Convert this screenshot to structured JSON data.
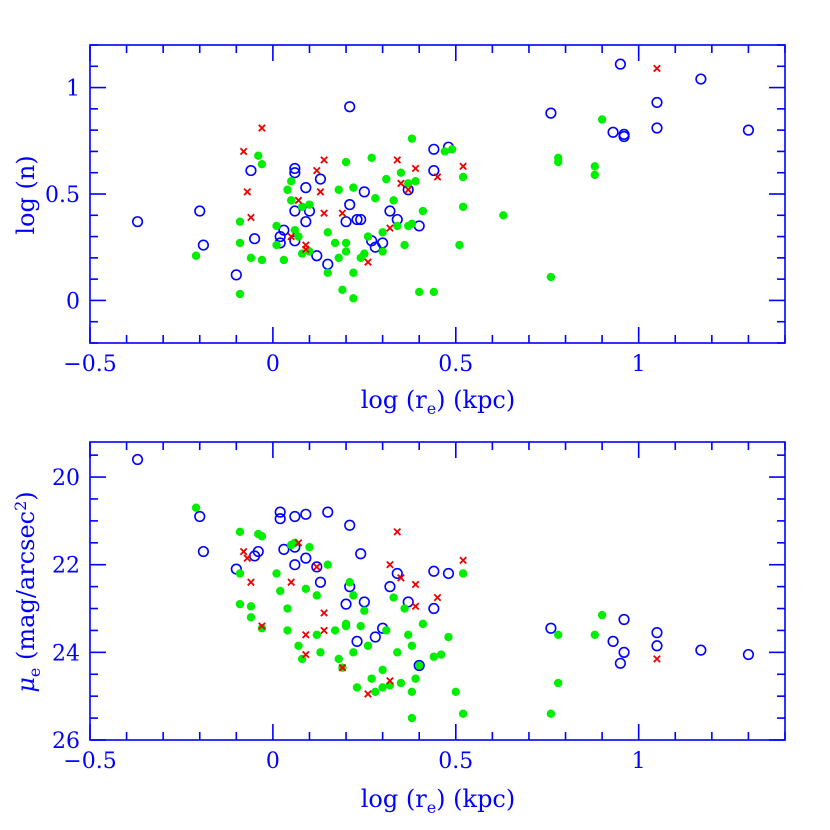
{
  "chart_data": [
    {
      "type": "scatter",
      "xlabel": "log (r_e) (kpc)",
      "ylabel": "log (n)",
      "xlim": [
        -0.5,
        1.4
      ],
      "ylim": [
        -0.2,
        1.2
      ],
      "xticks": [
        -0.5,
        0,
        0.5,
        1
      ],
      "xtick_labels": [
        "−0.5",
        "0",
        "0.5",
        "1"
      ],
      "yticks": [
        0,
        0.5,
        1
      ],
      "ytick_labels": [
        "0",
        "0.5",
        "1"
      ],
      "yinvert": false,
      "series": [
        {
          "marker": "open-circle",
          "color": "#0000ff",
          "points": [
            [
              -0.37,
              0.37
            ],
            [
              -0.2,
              0.42
            ],
            [
              -0.19,
              0.26
            ],
            [
              -0.1,
              0.12
            ],
            [
              -0.06,
              0.61
            ],
            [
              -0.05,
              0.29
            ],
            [
              0.02,
              0.3
            ],
            [
              0.02,
              0.27
            ],
            [
              0.03,
              0.33
            ],
            [
              0.06,
              0.6
            ],
            [
              0.06,
              0.62
            ],
            [
              0.06,
              0.42
            ],
            [
              0.06,
              0.28
            ],
            [
              0.09,
              0.53
            ],
            [
              0.09,
              0.37
            ],
            [
              0.1,
              0.42
            ],
            [
              0.12,
              0.21
            ],
            [
              0.13,
              0.57
            ],
            [
              0.15,
              0.17
            ],
            [
              0.2,
              0.37
            ],
            [
              0.21,
              0.91
            ],
            [
              0.21,
              0.45
            ],
            [
              0.23,
              0.38
            ],
            [
              0.24,
              0.38
            ],
            [
              0.25,
              0.51
            ],
            [
              0.27,
              0.28
            ],
            [
              0.28,
              0.25
            ],
            [
              0.3,
              0.27
            ],
            [
              0.32,
              0.42
            ],
            [
              0.34,
              0.38
            ],
            [
              0.37,
              0.52
            ],
            [
              0.4,
              0.35
            ],
            [
              0.44,
              0.71
            ],
            [
              0.44,
              0.61
            ],
            [
              0.48,
              0.72
            ],
            [
              0.76,
              0.88
            ],
            [
              0.93,
              0.79
            ],
            [
              0.95,
              1.11
            ],
            [
              0.96,
              0.78
            ],
            [
              0.96,
              0.77
            ],
            [
              1.05,
              0.93
            ],
            [
              1.05,
              0.81
            ],
            [
              1.17,
              1.04
            ],
            [
              1.3,
              0.8
            ]
          ]
        },
        {
          "marker": "filled-circle",
          "color": "#00ee00",
          "points": [
            [
              -0.21,
              0.21
            ],
            [
              -0.09,
              0.37
            ],
            [
              -0.09,
              0.27
            ],
            [
              -0.09,
              0.03
            ],
            [
              -0.06,
              0.2
            ],
            [
              -0.04,
              0.68
            ],
            [
              -0.03,
              0.64
            ],
            [
              -0.03,
              0.19
            ],
            [
              0.01,
              0.35
            ],
            [
              0.01,
              0.26
            ],
            [
              0.03,
              0.19
            ],
            [
              0.04,
              0.52
            ],
            [
              0.05,
              0.56
            ],
            [
              0.05,
              0.47
            ],
            [
              0.06,
              0.33
            ],
            [
              0.07,
              0.3
            ],
            [
              0.08,
              0.22
            ],
            [
              0.08,
              0.44
            ],
            [
              0.1,
              0.45
            ],
            [
              0.1,
              0.23
            ],
            [
              0.15,
              0.32
            ],
            [
              0.15,
              0.13
            ],
            [
              0.17,
              0.27
            ],
            [
              0.18,
              0.2
            ],
            [
              0.18,
              0.52
            ],
            [
              0.19,
              0.05
            ],
            [
              0.2,
              0.65
            ],
            [
              0.2,
              0.27
            ],
            [
              0.2,
              0.23
            ],
            [
              0.22,
              0.13
            ],
            [
              0.22,
              0.01
            ],
            [
              0.22,
              0.53
            ],
            [
              0.24,
              0.2
            ],
            [
              0.25,
              0.22
            ],
            [
              0.26,
              0.3
            ],
            [
              0.27,
              0.67
            ],
            [
              0.28,
              0.48
            ],
            [
              0.3,
              0.32
            ],
            [
              0.3,
              0.23
            ],
            [
              0.31,
              0.57
            ],
            [
              0.33,
              0.47
            ],
            [
              0.34,
              0.35
            ],
            [
              0.35,
              0.6
            ],
            [
              0.36,
              0.26
            ],
            [
              0.37,
              0.35
            ],
            [
              0.37,
              0.55
            ],
            [
              0.38,
              0.36
            ],
            [
              0.38,
              0.76
            ],
            [
              0.39,
              0.56
            ],
            [
              0.4,
              0.04
            ],
            [
              0.41,
              0.42
            ],
            [
              0.44,
              0.04
            ],
            [
              0.47,
              0.7
            ],
            [
              0.49,
              0.71
            ],
            [
              0.51,
              0.26
            ],
            [
              0.52,
              0.58
            ],
            [
              0.52,
              0.44
            ],
            [
              0.63,
              0.4
            ],
            [
              0.76,
              0.11
            ],
            [
              0.78,
              0.67
            ],
            [
              0.78,
              0.65
            ],
            [
              0.88,
              0.63
            ],
            [
              0.88,
              0.59
            ],
            [
              0.9,
              0.85
            ]
          ]
        },
        {
          "marker": "cross",
          "color": "#ee0000",
          "points": [
            [
              -0.08,
              0.7
            ],
            [
              -0.07,
              0.51
            ],
            [
              -0.06,
              0.39
            ],
            [
              -0.03,
              0.81
            ],
            [
              0.05,
              0.3
            ],
            [
              0.07,
              0.47
            ],
            [
              0.09,
              0.24
            ],
            [
              0.09,
              0.26
            ],
            [
              0.12,
              0.61
            ],
            [
              0.13,
              0.51
            ],
            [
              0.14,
              0.66
            ],
            [
              0.14,
              0.41
            ],
            [
              0.19,
              0.41
            ],
            [
              0.26,
              0.18
            ],
            [
              0.32,
              0.34
            ],
            [
              0.34,
              0.66
            ],
            [
              0.35,
              0.55
            ],
            [
              0.37,
              0.52
            ],
            [
              0.39,
              0.62
            ],
            [
              0.45,
              0.58
            ],
            [
              0.52,
              0.63
            ],
            [
              1.05,
              1.09
            ]
          ]
        }
      ]
    },
    {
      "type": "scatter",
      "xlabel": "log (r_e) (kpc)",
      "ylabel": "μ_e (mag/arcsec²)",
      "xlim": [
        -0.5,
        1.4
      ],
      "ylim": [
        19.2,
        26
      ],
      "xticks": [
        -0.5,
        0,
        0.5,
        1
      ],
      "xtick_labels": [
        "−0.5",
        "0",
        "0.5",
        "1"
      ],
      "yticks": [
        20,
        22,
        24,
        26
      ],
      "ytick_labels": [
        "20",
        "22",
        "24",
        "26"
      ],
      "yinvert": true,
      "series": [
        {
          "marker": "open-circle",
          "color": "#0000ff",
          "points": [
            [
              -0.37,
              19.6
            ],
            [
              -0.2,
              20.9
            ],
            [
              -0.19,
              21.7
            ],
            [
              -0.1,
              22.1
            ],
            [
              -0.05,
              21.8
            ],
            [
              -0.04,
              21.7
            ],
            [
              0.02,
              20.8
            ],
            [
              0.02,
              20.95
            ],
            [
              0.03,
              21.65
            ],
            [
              0.06,
              20.9
            ],
            [
              0.06,
              21.6
            ],
            [
              0.06,
              22.0
            ],
            [
              0.09,
              21.85
            ],
            [
              0.09,
              20.85
            ],
            [
              0.12,
              22.05
            ],
            [
              0.13,
              22.4
            ],
            [
              0.15,
              20.8
            ],
            [
              0.2,
              22.9
            ],
            [
              0.21,
              21.1
            ],
            [
              0.21,
              22.5
            ],
            [
              0.23,
              23.75
            ],
            [
              0.24,
              21.75
            ],
            [
              0.25,
              22.85
            ],
            [
              0.28,
              23.65
            ],
            [
              0.3,
              23.45
            ],
            [
              0.32,
              22.5
            ],
            [
              0.34,
              22.2
            ],
            [
              0.37,
              22.85
            ],
            [
              0.4,
              24.3
            ],
            [
              0.44,
              22.15
            ],
            [
              0.44,
              23.0
            ],
            [
              0.48,
              22.2
            ],
            [
              0.76,
              23.45
            ],
            [
              0.93,
              23.75
            ],
            [
              0.95,
              24.25
            ],
            [
              0.96,
              23.25
            ],
            [
              0.96,
              24.0
            ],
            [
              1.05,
              23.55
            ],
            [
              1.05,
              23.85
            ],
            [
              1.17,
              23.95
            ],
            [
              1.3,
              24.05
            ]
          ]
        },
        {
          "marker": "filled-circle",
          "color": "#00ee00",
          "points": [
            [
              -0.21,
              20.7
            ],
            [
              -0.09,
              21.25
            ],
            [
              -0.09,
              22.2
            ],
            [
              -0.09,
              22.9
            ],
            [
              -0.06,
              23.2
            ],
            [
              -0.06,
              22.95
            ],
            [
              -0.04,
              21.3
            ],
            [
              -0.03,
              21.35
            ],
            [
              -0.03,
              23.45
            ],
            [
              0.01,
              22.2
            ],
            [
              0.02,
              22.6
            ],
            [
              0.04,
              23.0
            ],
            [
              0.04,
              23.5
            ],
            [
              0.05,
              21.55
            ],
            [
              0.06,
              21.5
            ],
            [
              0.07,
              23.85
            ],
            [
              0.08,
              24.15
            ],
            [
              0.09,
              22.55
            ],
            [
              0.1,
              21.6
            ],
            [
              0.12,
              22.7
            ],
            [
              0.12,
              23.6
            ],
            [
              0.13,
              24.0
            ],
            [
              0.15,
              22.0
            ],
            [
              0.17,
              23.5
            ],
            [
              0.18,
              24.15
            ],
            [
              0.19,
              24.35
            ],
            [
              0.2,
              23.35
            ],
            [
              0.2,
              23.4
            ],
            [
              0.21,
              22.4
            ],
            [
              0.22,
              24.0
            ],
            [
              0.22,
              22.7
            ],
            [
              0.23,
              24.8
            ],
            [
              0.24,
              23.4
            ],
            [
              0.25,
              23.05
            ],
            [
              0.26,
              23.85
            ],
            [
              0.27,
              24.6
            ],
            [
              0.28,
              24.9
            ],
            [
              0.3,
              24.4
            ],
            [
              0.3,
              24.8
            ],
            [
              0.31,
              23.5
            ],
            [
              0.32,
              24.75
            ],
            [
              0.33,
              22.75
            ],
            [
              0.34,
              24.0
            ],
            [
              0.35,
              24.7
            ],
            [
              0.36,
              23.0
            ],
            [
              0.37,
              23.6
            ],
            [
              0.38,
              23.85
            ],
            [
              0.38,
              24.9
            ],
            [
              0.38,
              25.5
            ],
            [
              0.39,
              24.6
            ],
            [
              0.4,
              24.3
            ],
            [
              0.41,
              23.35
            ],
            [
              0.44,
              24.1
            ],
            [
              0.46,
              24.05
            ],
            [
              0.48,
              23.65
            ],
            [
              0.5,
              24.9
            ],
            [
              0.52,
              25.4
            ],
            [
              0.52,
              22.2
            ],
            [
              0.76,
              25.4
            ],
            [
              0.78,
              23.6
            ],
            [
              0.78,
              24.7
            ],
            [
              0.88,
              23.6
            ],
            [
              0.9,
              23.15
            ]
          ]
        },
        {
          "marker": "cross",
          "color": "#ee0000",
          "points": [
            [
              -0.08,
              21.7
            ],
            [
              -0.07,
              21.85
            ],
            [
              -0.06,
              22.4
            ],
            [
              -0.03,
              23.4
            ],
            [
              0.05,
              22.4
            ],
            [
              0.07,
              21.5
            ],
            [
              0.09,
              23.6
            ],
            [
              0.09,
              24.05
            ],
            [
              0.12,
              22.05
            ],
            [
              0.14,
              23.1
            ],
            [
              0.14,
              23.5
            ],
            [
              0.19,
              24.35
            ],
            [
              0.26,
              24.95
            ],
            [
              0.32,
              24.65
            ],
            [
              0.32,
              22.0
            ],
            [
              0.34,
              21.25
            ],
            [
              0.35,
              22.3
            ],
            [
              0.39,
              22.95
            ],
            [
              0.39,
              22.45
            ],
            [
              0.45,
              22.75
            ],
            [
              0.52,
              21.9
            ],
            [
              1.05,
              24.15
            ]
          ]
        }
      ]
    }
  ]
}
